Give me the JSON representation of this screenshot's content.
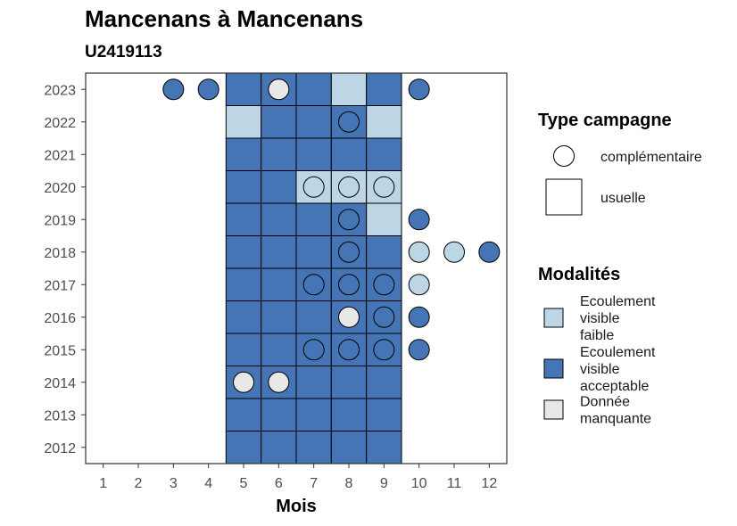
{
  "chart_data": {
    "type": "heatmap",
    "title": "Mancenans à Mancenans",
    "subtitle": "U2419113",
    "xlabel": "Mois",
    "ylabel": "",
    "x_ticks": [
      1,
      2,
      3,
      4,
      5,
      6,
      7,
      8,
      9,
      10,
      11,
      12
    ],
    "y_ticks": [
      2012,
      2013,
      2014,
      2015,
      2016,
      2017,
      2018,
      2019,
      2020,
      2021,
      2022,
      2023
    ],
    "xlim": [
      0.5,
      12.5
    ],
    "ylim": [
      2011.5,
      2023.5
    ],
    "grid": false,
    "legend_position": "right",
    "legend_type": {
      "title": "Type campagne",
      "items": [
        {
          "shape": "circle",
          "label": "complémentaire"
        },
        {
          "shape": "square",
          "label": "usuelle"
        }
      ]
    },
    "legend_modalites": {
      "title": "Modalités",
      "items": [
        {
          "key": "faible",
          "label_lines": [
            "Ecoulement",
            "visible",
            "faible"
          ],
          "color": "#bcd6e6"
        },
        {
          "key": "acceptable",
          "label_lines": [
            "Ecoulement",
            "visible",
            "acceptable"
          ],
          "color": "#4575b4"
        },
        {
          "key": "manquante",
          "label_lines": [
            "Donnée",
            "manquante"
          ],
          "color": "#e8e8e8"
        }
      ]
    },
    "colors": {
      "faible": "#bcd6e6",
      "acceptable": "#4575b4",
      "manquante": "#e8e8e8"
    },
    "observations": [
      {
        "year": 2023,
        "month": 3,
        "type": "complementaire",
        "modalite": "acceptable"
      },
      {
        "year": 2023,
        "month": 4,
        "type": "complementaire",
        "modalite": "acceptable"
      },
      {
        "year": 2023,
        "month": 5,
        "type": "usuelle",
        "modalite": "acceptable"
      },
      {
        "year": 2023,
        "month": 6,
        "type": "usuelle",
        "modalite": "acceptable"
      },
      {
        "year": 2023,
        "month": 6,
        "type": "complementaire",
        "modalite": "manquante"
      },
      {
        "year": 2023,
        "month": 7,
        "type": "usuelle",
        "modalite": "acceptable"
      },
      {
        "year": 2023,
        "month": 8,
        "type": "usuelle",
        "modalite": "faible"
      },
      {
        "year": 2023,
        "month": 9,
        "type": "usuelle",
        "modalite": "acceptable"
      },
      {
        "year": 2023,
        "month": 10,
        "type": "complementaire",
        "modalite": "acceptable"
      },
      {
        "year": 2022,
        "month": 5,
        "type": "usuelle",
        "modalite": "faible"
      },
      {
        "year": 2022,
        "month": 6,
        "type": "usuelle",
        "modalite": "acceptable"
      },
      {
        "year": 2022,
        "month": 7,
        "type": "usuelle",
        "modalite": "acceptable"
      },
      {
        "year": 2022,
        "month": 8,
        "type": "usuelle",
        "modalite": "acceptable"
      },
      {
        "year": 2022,
        "month": 8,
        "type": "complementaire",
        "modalite": "acceptable"
      },
      {
        "year": 2022,
        "month": 9,
        "type": "usuelle",
        "modalite": "faible"
      },
      {
        "year": 2021,
        "month": 5,
        "type": "usuelle",
        "modalite": "acceptable"
      },
      {
        "year": 2021,
        "month": 6,
        "type": "usuelle",
        "modalite": "acceptable"
      },
      {
        "year": 2021,
        "month": 7,
        "type": "usuelle",
        "modalite": "acceptable"
      },
      {
        "year": 2021,
        "month": 8,
        "type": "usuelle",
        "modalite": "acceptable"
      },
      {
        "year": 2021,
        "month": 9,
        "type": "usuelle",
        "modalite": "acceptable"
      },
      {
        "year": 2020,
        "month": 5,
        "type": "usuelle",
        "modalite": "acceptable"
      },
      {
        "year": 2020,
        "month": 6,
        "type": "usuelle",
        "modalite": "acceptable"
      },
      {
        "year": 2020,
        "month": 7,
        "type": "usuelle",
        "modalite": "faible"
      },
      {
        "year": 2020,
        "month": 7,
        "type": "complementaire",
        "modalite": "faible"
      },
      {
        "year": 2020,
        "month": 8,
        "type": "usuelle",
        "modalite": "faible"
      },
      {
        "year": 2020,
        "month": 8,
        "type": "complementaire",
        "modalite": "faible"
      },
      {
        "year": 2020,
        "month": 9,
        "type": "usuelle",
        "modalite": "faible"
      },
      {
        "year": 2020,
        "month": 9,
        "type": "complementaire",
        "modalite": "faible"
      },
      {
        "year": 2019,
        "month": 5,
        "type": "usuelle",
        "modalite": "acceptable"
      },
      {
        "year": 2019,
        "month": 6,
        "type": "usuelle",
        "modalite": "acceptable"
      },
      {
        "year": 2019,
        "month": 7,
        "type": "usuelle",
        "modalite": "acceptable"
      },
      {
        "year": 2019,
        "month": 8,
        "type": "usuelle",
        "modalite": "acceptable"
      },
      {
        "year": 2019,
        "month": 8,
        "type": "complementaire",
        "modalite": "acceptable"
      },
      {
        "year": 2019,
        "month": 9,
        "type": "usuelle",
        "modalite": "faible"
      },
      {
        "year": 2019,
        "month": 10,
        "type": "complementaire",
        "modalite": "acceptable"
      },
      {
        "year": 2018,
        "month": 5,
        "type": "usuelle",
        "modalite": "acceptable"
      },
      {
        "year": 2018,
        "month": 6,
        "type": "usuelle",
        "modalite": "acceptable"
      },
      {
        "year": 2018,
        "month": 7,
        "type": "usuelle",
        "modalite": "acceptable"
      },
      {
        "year": 2018,
        "month": 8,
        "type": "usuelle",
        "modalite": "acceptable"
      },
      {
        "year": 2018,
        "month": 8,
        "type": "complementaire",
        "modalite": "acceptable"
      },
      {
        "year": 2018,
        "month": 9,
        "type": "usuelle",
        "modalite": "acceptable"
      },
      {
        "year": 2018,
        "month": 10,
        "type": "complementaire",
        "modalite": "faible"
      },
      {
        "year": 2018,
        "month": 11,
        "type": "complementaire",
        "modalite": "faible"
      },
      {
        "year": 2018,
        "month": 12,
        "type": "complementaire",
        "modalite": "acceptable"
      },
      {
        "year": 2017,
        "month": 5,
        "type": "usuelle",
        "modalite": "acceptable"
      },
      {
        "year": 2017,
        "month": 6,
        "type": "usuelle",
        "modalite": "acceptable"
      },
      {
        "year": 2017,
        "month": 7,
        "type": "usuelle",
        "modalite": "acceptable"
      },
      {
        "year": 2017,
        "month": 7,
        "type": "complementaire",
        "modalite": "acceptable"
      },
      {
        "year": 2017,
        "month": 8,
        "type": "usuelle",
        "modalite": "acceptable"
      },
      {
        "year": 2017,
        "month": 8,
        "type": "complementaire",
        "modalite": "acceptable"
      },
      {
        "year": 2017,
        "month": 9,
        "type": "usuelle",
        "modalite": "acceptable"
      },
      {
        "year": 2017,
        "month": 9,
        "type": "complementaire",
        "modalite": "acceptable"
      },
      {
        "year": 2017,
        "month": 10,
        "type": "complementaire",
        "modalite": "faible"
      },
      {
        "year": 2016,
        "month": 5,
        "type": "usuelle",
        "modalite": "acceptable"
      },
      {
        "year": 2016,
        "month": 6,
        "type": "usuelle",
        "modalite": "acceptable"
      },
      {
        "year": 2016,
        "month": 7,
        "type": "usuelle",
        "modalite": "acceptable"
      },
      {
        "year": 2016,
        "month": 8,
        "type": "usuelle",
        "modalite": "acceptable"
      },
      {
        "year": 2016,
        "month": 8,
        "type": "complementaire",
        "modalite": "manquante"
      },
      {
        "year": 2016,
        "month": 9,
        "type": "usuelle",
        "modalite": "acceptable"
      },
      {
        "year": 2016,
        "month": 9,
        "type": "complementaire",
        "modalite": "acceptable"
      },
      {
        "year": 2016,
        "month": 10,
        "type": "complementaire",
        "modalite": "acceptable"
      },
      {
        "year": 2015,
        "month": 5,
        "type": "usuelle",
        "modalite": "acceptable"
      },
      {
        "year": 2015,
        "month": 6,
        "type": "usuelle",
        "modalite": "acceptable"
      },
      {
        "year": 2015,
        "month": 7,
        "type": "usuelle",
        "modalite": "acceptable"
      },
      {
        "year": 2015,
        "month": 7,
        "type": "complementaire",
        "modalite": "acceptable"
      },
      {
        "year": 2015,
        "month": 8,
        "type": "usuelle",
        "modalite": "acceptable"
      },
      {
        "year": 2015,
        "month": 8,
        "type": "complementaire",
        "modalite": "acceptable"
      },
      {
        "year": 2015,
        "month": 9,
        "type": "usuelle",
        "modalite": "acceptable"
      },
      {
        "year": 2015,
        "month": 9,
        "type": "complementaire",
        "modalite": "acceptable"
      },
      {
        "year": 2015,
        "month": 10,
        "type": "complementaire",
        "modalite": "acceptable"
      },
      {
        "year": 2014,
        "month": 5,
        "type": "usuelle",
        "modalite": "acceptable"
      },
      {
        "year": 2014,
        "month": 5,
        "type": "complementaire",
        "modalite": "manquante"
      },
      {
        "year": 2014,
        "month": 6,
        "type": "usuelle",
        "modalite": "acceptable"
      },
      {
        "year": 2014,
        "month": 6,
        "type": "complementaire",
        "modalite": "manquante"
      },
      {
        "year": 2014,
        "month": 7,
        "type": "usuelle",
        "modalite": "acceptable"
      },
      {
        "year": 2014,
        "month": 8,
        "type": "usuelle",
        "modalite": "acceptable"
      },
      {
        "year": 2014,
        "month": 9,
        "type": "usuelle",
        "modalite": "acceptable"
      },
      {
        "year": 2013,
        "month": 5,
        "type": "usuelle",
        "modalite": "acceptable"
      },
      {
        "year": 2013,
        "month": 6,
        "type": "usuelle",
        "modalite": "acceptable"
      },
      {
        "year": 2013,
        "month": 7,
        "type": "usuelle",
        "modalite": "acceptable"
      },
      {
        "year": 2013,
        "month": 8,
        "type": "usuelle",
        "modalite": "acceptable"
      },
      {
        "year": 2013,
        "month": 9,
        "type": "usuelle",
        "modalite": "acceptable"
      },
      {
        "year": 2012,
        "month": 5,
        "type": "usuelle",
        "modalite": "acceptable"
      },
      {
        "year": 2012,
        "month": 6,
        "type": "usuelle",
        "modalite": "acceptable"
      },
      {
        "year": 2012,
        "month": 7,
        "type": "usuelle",
        "modalite": "acceptable"
      },
      {
        "year": 2012,
        "month": 8,
        "type": "usuelle",
        "modalite": "acceptable"
      },
      {
        "year": 2012,
        "month": 9,
        "type": "usuelle",
        "modalite": "acceptable"
      }
    ]
  }
}
